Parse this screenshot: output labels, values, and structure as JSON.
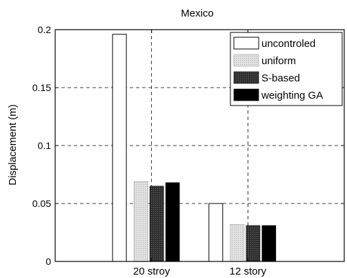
{
  "chart_data": {
    "type": "bar",
    "title": "Mexico",
    "xlabel": "",
    "ylabel": "Displacement (m)",
    "ylim": [
      0,
      0.2
    ],
    "yticks": [
      0,
      0.05,
      0.1,
      0.15,
      0.2
    ],
    "ytick_labels": [
      "0",
      "0.05",
      "0.1",
      "0.15",
      "0.2"
    ],
    "grid": true,
    "legend_position": "top-right",
    "categories": [
      "20 stroy",
      "12 story"
    ],
    "series": [
      {
        "name": "uncontroled",
        "values": [
          0.196,
          0.05
        ],
        "color": "#ffffff"
      },
      {
        "name": "uniform",
        "values": [
          0.069,
          0.032
        ],
        "color": "#d9d9d9"
      },
      {
        "name": "S-based",
        "values": [
          0.065,
          0.031
        ],
        "color": "#3a3a3a"
      },
      {
        "name": "weighting GA",
        "values": [
          0.068,
          0.031
        ],
        "color": "#000000"
      }
    ]
  }
}
